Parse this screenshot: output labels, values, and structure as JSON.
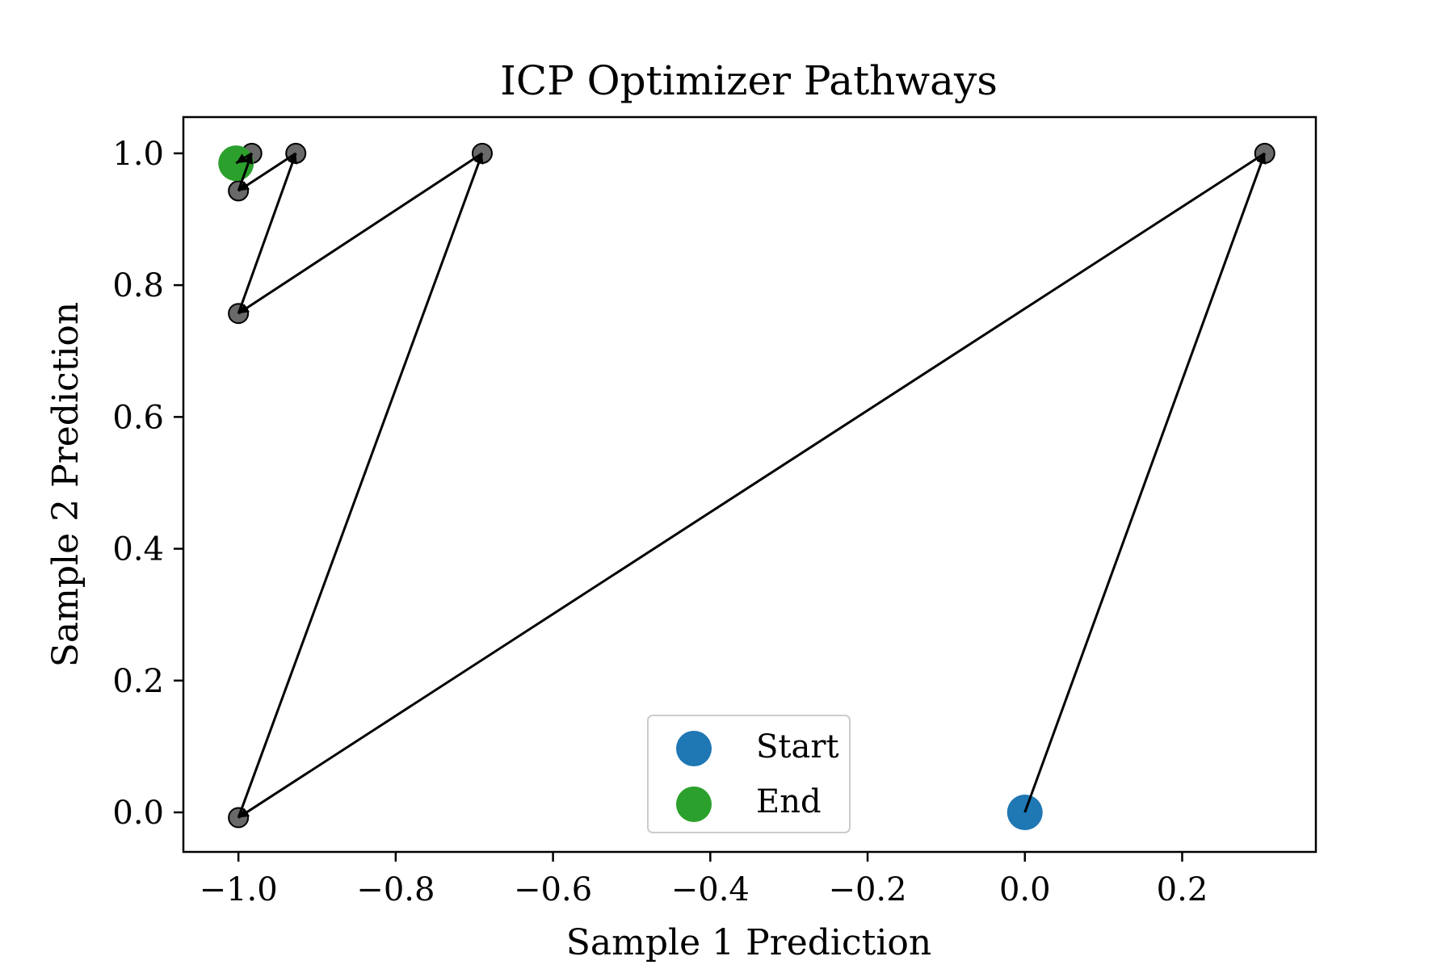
{
  "chart_data": {
    "type": "scatter",
    "title": "ICP Optimizer Pathways",
    "xlabel": "Sample 1 Prediction",
    "ylabel": "Sample 2 Prediction",
    "xlim": [
      -1.07,
      0.37
    ],
    "ylim": [
      -0.06,
      1.055
    ],
    "xticks": [
      -1.0,
      -0.8,
      -0.6,
      -0.4,
      -0.2,
      0.0,
      0.2
    ],
    "xtick_labels": [
      "−1.0",
      "−0.8",
      "−0.6",
      "−0.4",
      "−0.2",
      "0.0",
      "0.2"
    ],
    "yticks": [
      0.0,
      0.2,
      0.4,
      0.6,
      0.8,
      1.0
    ],
    "ytick_labels": [
      "0.0",
      "0.2",
      "0.4",
      "0.6",
      "0.8",
      "1.0"
    ],
    "grid": false,
    "path": {
      "x": [
        0.0,
        0.305,
        -1.0,
        -0.69,
        -1.0,
        -0.927,
        -1.0,
        -0.983,
        -1.003
      ],
      "y": [
        0.0,
        1.0,
        -0.008,
        1.0,
        0.757,
        1.0,
        0.943,
        1.0,
        0.985
      ]
    },
    "start": {
      "name": "Start",
      "x": 0.0,
      "y": 0.0
    },
    "end": {
      "name": "End",
      "x": -1.003,
      "y": 0.985
    },
    "legend": {
      "placement": "lower-center",
      "entries": [
        "Start",
        "End"
      ]
    },
    "colors": {
      "start": "#1f77b4",
      "end": "#2ca02c",
      "path": "#000000",
      "intermediate": "#444444"
    }
  }
}
